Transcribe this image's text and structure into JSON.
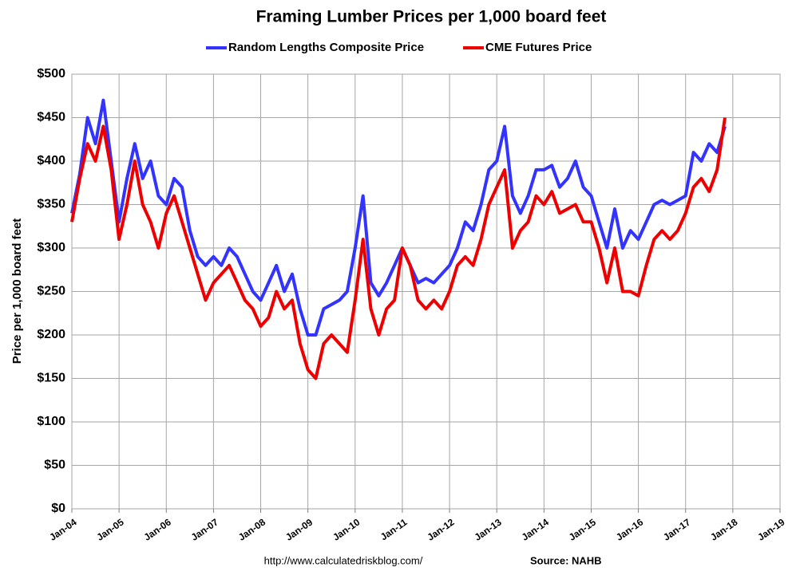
{
  "chart_data": {
    "type": "line",
    "title": "Framing Lumber Prices per 1,000 board feet",
    "y_label": "Price per 1,000 board feet",
    "source_url": "http://www.calculatedriskblog.com/",
    "source": "Source: NAHB",
    "grid": true,
    "legend": "top",
    "x": [
      "2004-01",
      "2004-03",
      "2004-05",
      "2004-07",
      "2004-09",
      "2004-11",
      "2005-01",
      "2005-03",
      "2005-05",
      "2005-07",
      "2005-09",
      "2005-11",
      "2006-01",
      "2006-03",
      "2006-05",
      "2006-07",
      "2006-09",
      "2006-11",
      "2007-01",
      "2007-03",
      "2007-05",
      "2007-07",
      "2007-09",
      "2007-11",
      "2008-01",
      "2008-03",
      "2008-05",
      "2008-07",
      "2008-09",
      "2008-11",
      "2009-01",
      "2009-03",
      "2009-05",
      "2009-07",
      "2009-09",
      "2009-11",
      "2010-01",
      "2010-03",
      "2010-05",
      "2010-07",
      "2010-09",
      "2010-11",
      "2011-01",
      "2011-03",
      "2011-05",
      "2011-07",
      "2011-09",
      "2011-11",
      "2012-01",
      "2012-03",
      "2012-05",
      "2012-07",
      "2012-09",
      "2012-11",
      "2013-01",
      "2013-03",
      "2013-05",
      "2013-07",
      "2013-09",
      "2013-11",
      "2014-01",
      "2014-03",
      "2014-05",
      "2014-07",
      "2014-09",
      "2014-11",
      "2015-01",
      "2015-03",
      "2015-05",
      "2015-07",
      "2015-09",
      "2015-11",
      "2016-01",
      "2016-03",
      "2016-05",
      "2016-07",
      "2016-09",
      "2016-11",
      "2017-01",
      "2017-03",
      "2017-05",
      "2017-07",
      "2017-09",
      "2017-11"
    ],
    "series": [
      {
        "name": "Random Lengths Composite Price",
        "color": "#3333ff",
        "values": [
          340,
          385,
          450,
          420,
          470,
          400,
          330,
          380,
          420,
          380,
          400,
          360,
          350,
          380,
          370,
          320,
          290,
          280,
          290,
          280,
          300,
          290,
          270,
          250,
          240,
          260,
          280,
          250,
          270,
          230,
          200,
          200,
          230,
          235,
          240,
          250,
          300,
          360,
          260,
          245,
          260,
          280,
          300,
          280,
          260,
          265,
          260,
          270,
          280,
          300,
          330,
          320,
          350,
          390,
          400,
          440,
          360,
          340,
          360,
          390,
          390,
          395,
          370,
          380,
          400,
          370,
          360,
          330,
          300,
          345,
          300,
          320,
          310,
          330,
          350,
          355,
          350,
          355,
          360,
          410,
          400,
          420,
          410,
          440
        ]
      },
      {
        "name": "CME Futures Price",
        "color": "#ee0000",
        "values": [
          330,
          380,
          420,
          400,
          440,
          390,
          310,
          350,
          400,
          350,
          330,
          300,
          340,
          360,
          330,
          300,
          270,
          240,
          260,
          270,
          280,
          260,
          240,
          230,
          210,
          220,
          250,
          230,
          240,
          190,
          160,
          150,
          190,
          200,
          190,
          180,
          240,
          310,
          230,
          200,
          230,
          240,
          300,
          280,
          240,
          230,
          240,
          230,
          250,
          280,
          290,
          280,
          310,
          350,
          370,
          390,
          300,
          320,
          330,
          360,
          350,
          365,
          340,
          345,
          350,
          330,
          330,
          300,
          260,
          300,
          250,
          250,
          245,
          280,
          310,
          320,
          310,
          320,
          340,
          370,
          380,
          365,
          390,
          450
        ]
      }
    ],
    "xlim": [
      "2004-01",
      "2019-01"
    ],
    "xticks": [
      {
        "value": "2004-01",
        "label": "Jan-04"
      },
      {
        "value": "2005-01",
        "label": "Jan-05"
      },
      {
        "value": "2006-01",
        "label": "Jan-06"
      },
      {
        "value": "2007-01",
        "label": "Jan-07"
      },
      {
        "value": "2008-01",
        "label": "Jan-08"
      },
      {
        "value": "2009-01",
        "label": "Jan-09"
      },
      {
        "value": "2010-01",
        "label": "Jan-10"
      },
      {
        "value": "2011-01",
        "label": "Jan-11"
      },
      {
        "value": "2012-01",
        "label": "Jan-12"
      },
      {
        "value": "2013-01",
        "label": "Jan-13"
      },
      {
        "value": "2014-01",
        "label": "Jan-14"
      },
      {
        "value": "2015-01",
        "label": "Jan-15"
      },
      {
        "value": "2016-01",
        "label": "Jan-16"
      },
      {
        "value": "2017-01",
        "label": "Jan-17"
      },
      {
        "value": "2018-01",
        "label": "Jan-18"
      },
      {
        "value": "2019-01",
        "label": "Jan-19"
      }
    ],
    "ylim": [
      0,
      500
    ],
    "yticks": [
      {
        "value": 0,
        "label": "$0"
      },
      {
        "value": 50,
        "label": "$50"
      },
      {
        "value": 100,
        "label": "$100"
      },
      {
        "value": 150,
        "label": "$150"
      },
      {
        "value": 200,
        "label": "$200"
      },
      {
        "value": 250,
        "label": "$250"
      },
      {
        "value": 300,
        "label": "$300"
      },
      {
        "value": 350,
        "label": "$350"
      },
      {
        "value": 400,
        "label": "$400"
      },
      {
        "value": 450,
        "label": "$450"
      },
      {
        "value": 500,
        "label": "$500"
      }
    ]
  }
}
